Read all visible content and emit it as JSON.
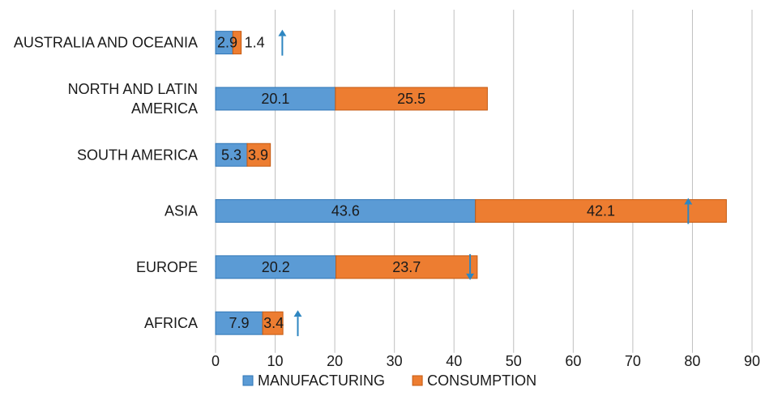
{
  "chart_data": {
    "type": "bar",
    "orientation": "horizontal",
    "stacked": true,
    "categories": [
      [
        "AUSTRALIA AND OCEANIA"
      ],
      [
        "NORTH AND LATIN",
        "AMERICA"
      ],
      [
        "SOUTH AMERICA"
      ],
      [
        "ASIA"
      ],
      [
        "EUROPE"
      ],
      [
        "AFRICA"
      ]
    ],
    "series": [
      {
        "name": "MANUFACTURING",
        "color": "#5b9bd5",
        "values": [
          2.9,
          20.1,
          5.3,
          43.6,
          20.2,
          7.9
        ]
      },
      {
        "name": "CONSUMPTION",
        "color": "#ed7d31",
        "values": [
          1.4,
          25.5,
          3.9,
          42.1,
          23.7,
          3.4
        ]
      }
    ],
    "xlim": [
      0,
      90
    ],
    "xticks": [
      0,
      10,
      20,
      30,
      40,
      50,
      60,
      70,
      80,
      90
    ],
    "grid": "vertical",
    "legend": "bottom",
    "arrows": [
      {
        "category": 0,
        "x": 11.2,
        "direction": "up",
        "color": "#2e86c1"
      },
      {
        "category": 3,
        "x": 79.3,
        "direction": "up",
        "color": "#2e86c1"
      },
      {
        "category": 4,
        "x": 42.7,
        "direction": "down",
        "color": "#2e86c1"
      },
      {
        "category": 5,
        "x": 13.8,
        "direction": "up",
        "color": "#2e86c1"
      }
    ]
  }
}
